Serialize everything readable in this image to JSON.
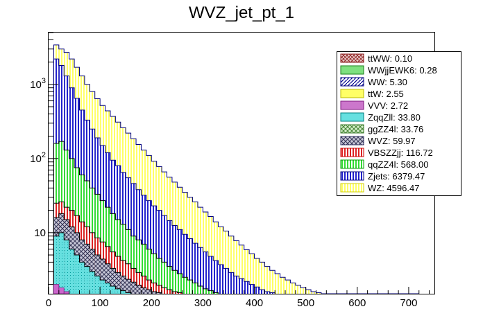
{
  "chart_data": {
    "type": "stacked-histogram",
    "title": "WVZ_jet_pt_1",
    "xlabel": "",
    "ylabel": "",
    "xlim": [
      0,
      750
    ],
    "ylim": [
      1.5,
      5000
    ],
    "y_scale": "log",
    "x_ticks": [
      0,
      100,
      200,
      300,
      400,
      500,
      600,
      700
    ],
    "x_tick_labels": [
      "0",
      "100",
      "200",
      "300",
      "400",
      "500",
      "600",
      "700"
    ],
    "y_ticks": [
      10,
      100,
      1000
    ],
    "y_tick_labels": [
      "10",
      "10^2",
      "10^3"
    ],
    "bin_width": 10,
    "grid": false,
    "legend_position": "top-right",
    "legend": [
      {
        "label": "ttWW: 0.10",
        "fill": "#d4a7a7",
        "stroke": "#8b1a1a",
        "pattern": "cross"
      },
      {
        "label": "WWjjEWK6: 0.28",
        "fill": "#7fe07f",
        "stroke": "#1a7f1a",
        "pattern": "solid"
      },
      {
        "label": "WW: 5.30",
        "fill": "#2a2ad0",
        "stroke": "#00007f",
        "pattern": "hatch"
      },
      {
        "label": "ttW: 2.55",
        "fill": "#ffff66",
        "stroke": "#bbbb00",
        "pattern": "solid"
      },
      {
        "label": "VVV: 2.72",
        "fill": "#cc77cc",
        "stroke": "#7f1a7f",
        "pattern": "solid"
      },
      {
        "label": "ZqqZll: 33.80",
        "fill": "#66e0e0",
        "stroke": "#007f7f",
        "pattern": "solid"
      },
      {
        "label": "ggZZ4l: 33.76",
        "fill": "#aad99b",
        "stroke": "#3f7f2f",
        "pattern": "cross"
      },
      {
        "label": "WVZ: 59.97",
        "fill": "#8c8cb8",
        "stroke": "#2f2f5f",
        "pattern": "cross"
      },
      {
        "label": "VBSZZjj: 116.72",
        "fill": "#ff9999",
        "stroke": "#cc0000",
        "pattern": "vstripe"
      },
      {
        "label": "qqZZ4l: 568.00",
        "fill": "#66ee66",
        "stroke": "#009900",
        "pattern": "vstripe"
      },
      {
        "label": "Zjets: 6379.47",
        "fill": "#3333cc",
        "stroke": "#00007f",
        "pattern": "vstripe"
      },
      {
        "label": "WZ: 4596.47",
        "fill": "#ffff88",
        "stroke": "#d0d000",
        "pattern": "vstripe"
      }
    ],
    "stack_x_start": 10,
    "stack_totals": [
      {
        "name": "cyan+magenta",
        "values": [
          9,
          10,
          8,
          6,
          5,
          4,
          3.5,
          3,
          2.6,
          2.3,
          2.1,
          1.9,
          1.75,
          1.65,
          1.55
        ]
      },
      {
        "name": "grey",
        "values": [
          16,
          18,
          15,
          12,
          10,
          8,
          7,
          6,
          5,
          4.4,
          3.8,
          3.3,
          2.9,
          2.6,
          2.35,
          2.15,
          1.95,
          1.8,
          1.7,
          1.6,
          1.55
        ]
      },
      {
        "name": "red",
        "values": [
          25,
          26,
          22,
          20,
          17,
          14,
          12,
          10,
          8.5,
          7.5,
          6.5,
          5.5,
          4.8,
          4.2,
          3.8,
          3.3,
          2.9,
          2.6,
          2.3,
          2.1,
          1.95,
          1.8,
          1.7,
          1.6,
          1.55
        ]
      },
      {
        "name": "green",
        "values": [
          160,
          170,
          130,
          100,
          75,
          60,
          50,
          40,
          33,
          27,
          22,
          18,
          15,
          13,
          11,
          9,
          8,
          7,
          6,
          5.2,
          4.5,
          4,
          3.5,
          3.1,
          2.8,
          2.5,
          2.3,
          2.1,
          1.9,
          1.75,
          1.65,
          1.55
        ]
      },
      {
        "name": "blue",
        "values": [
          2200,
          1800,
          1300,
          900,
          650,
          450,
          330,
          250,
          190,
          150,
          120,
          95,
          80,
          65,
          55,
          46,
          38,
          32,
          27,
          23,
          20,
          17,
          14.5,
          12.5,
          11,
          9.5,
          8.3,
          7.2,
          6.3,
          5.5,
          4.8,
          4.2,
          3.7,
          3.3,
          2.9,
          2.6,
          2.4,
          2.2,
          2.0,
          1.85,
          1.7,
          1.6,
          1.55
        ]
      },
      {
        "name": "yellow",
        "values": [
          3400,
          3000,
          2700,
          2200,
          1700,
          1300,
          1000,
          800,
          640,
          520,
          440,
          370,
          310,
          260,
          220,
          185,
          155,
          130,
          110,
          92,
          78,
          66,
          56,
          48,
          41,
          35,
          30,
          26,
          22,
          19,
          16.5,
          14,
          12,
          10.5,
          9,
          7.8,
          6.8,
          5.9,
          5.2,
          4.5,
          4.0,
          3.5,
          3.1,
          2.8,
          2.5,
          2.3,
          2.1,
          1.95,
          1.8,
          1.7,
          1.6,
          1.55,
          1.5,
          1.5,
          1.5,
          1.5,
          1.5,
          1.5,
          1.5,
          1.5,
          1.5,
          1.5,
          1.5,
          1.5,
          1.5,
          1.5,
          1.5,
          1.5,
          1.5,
          1.5,
          1.5
        ]
      }
    ]
  }
}
